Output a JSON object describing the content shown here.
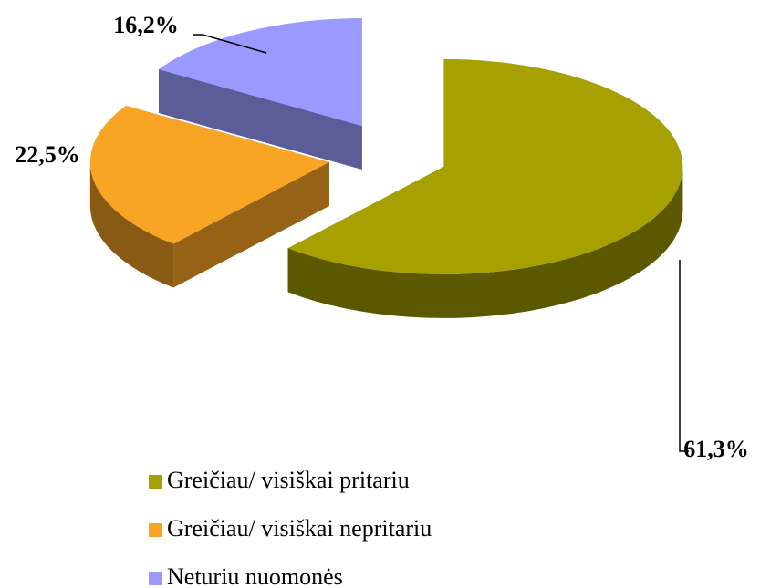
{
  "chart_data": {
    "type": "pie",
    "categories": [
      "Greičiau/ visiškai pritariu",
      "Greičiau/ visiškai nepritariu",
      "Neturiu nuomonės"
    ],
    "values": [
      61.3,
      22.5,
      16.2
    ],
    "value_labels": [
      "61,3%",
      "22,5%",
      "16,2%"
    ],
    "colors": [
      "#a6a000",
      "#f8a424",
      "#9999ff"
    ],
    "legend": "bottom"
  }
}
